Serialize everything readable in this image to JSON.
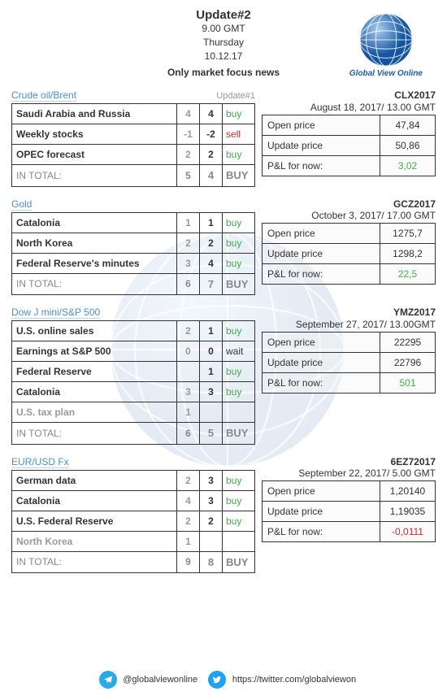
{
  "header": {
    "title": "Update#2",
    "time": "9.00 GMT",
    "day": "Thursday",
    "date": "10.12.17",
    "subtitle": "Only market focus news"
  },
  "logo_caption": "Global View Online",
  "colors": {
    "title_link": "#4a8fd4",
    "green": "#3cb043",
    "red": "#d8232a",
    "gray": "#999999"
  },
  "blocks": [
    {
      "title": "Crude oil/Brent",
      "sublabel": "Update#1",
      "rows": [
        {
          "name": "Saudi Arabia and Russia",
          "c1": "4",
          "c2": "4",
          "act": "buy",
          "act_color": "green"
        },
        {
          "name": "Weekly stocks",
          "c1": "-1",
          "c2": "-2",
          "act": "sell",
          "act_color": "red"
        },
        {
          "name": "OPEC forecast",
          "c1": "2",
          "c2": "2",
          "act": "buy",
          "act_color": "green"
        }
      ],
      "total": {
        "label": "IN TOTAL:",
        "c1": "5",
        "c2": "4",
        "act": "BUY",
        "act_color": "green"
      },
      "ticker": "CLX2017",
      "ticker_sub": "August 18, 2017/ 13.00 GMT",
      "info": [
        {
          "label": "Open price",
          "val": "47,84",
          "color": "black"
        },
        {
          "label": "Update price",
          "val": "50,86",
          "color": "black"
        },
        {
          "label": "P&L for now:",
          "val": "3,02",
          "color": "green"
        }
      ]
    },
    {
      "title": "Gold",
      "sublabel": "",
      "rows": [
        {
          "name": "Catalonia",
          "c1": "1",
          "c2": "1",
          "act": "buy",
          "act_color": "green"
        },
        {
          "name": "North Korea",
          "c1": "2",
          "c2": "2",
          "act": "buy",
          "act_color": "green"
        },
        {
          "name": "Federal Reserve's minutes",
          "c1": "3",
          "c2": "4",
          "act": "buy",
          "act_color": "green"
        }
      ],
      "total": {
        "label": "IN TOTAL:",
        "c1": "6",
        "c2": "7",
        "act": "BUY",
        "act_color": "green"
      },
      "ticker": "GCZ2017",
      "ticker_sub": "October 3, 2017/ 17.00 GMT",
      "info": [
        {
          "label": "Open price",
          "val": "1275,7",
          "color": "black"
        },
        {
          "label": "Update price",
          "val": "1298,2",
          "color": "black"
        },
        {
          "label": "P&L for now:",
          "val": "22,5",
          "color": "green"
        }
      ]
    },
    {
      "title": "Dow J mini/S&P 500",
      "sublabel": "",
      "rows": [
        {
          "name": "U.S. online sales",
          "c1": "2",
          "c2": "1",
          "act": "buy",
          "act_color": "green"
        },
        {
          "name": "Earnings at S&P 500",
          "c1": "0",
          "c2": "0",
          "act": "wait",
          "act_color": "black"
        },
        {
          "name": "Federal Reserve",
          "c1": "",
          "c2": "1",
          "act": "buy",
          "act_color": "green"
        },
        {
          "name": "Catalonia",
          "c1": "3",
          "c2": "3",
          "act": "buy",
          "act_color": "green"
        },
        {
          "name": "U.S. tax plan",
          "c1": "1",
          "c2": "",
          "act": "",
          "act_color": "black",
          "gray": true
        }
      ],
      "total": {
        "label": "IN TOTAL:",
        "c1": "6",
        "c2": "5",
        "act": "BUY",
        "act_color": "green"
      },
      "ticker": "YMZ2017",
      "ticker_sub": "September 27, 2017/ 13.00GMT",
      "info": [
        {
          "label": "Open price",
          "val": "22295",
          "color": "black"
        },
        {
          "label": "Update price",
          "val": "22796",
          "color": "black"
        },
        {
          "label": "P&L for now:",
          "val": "501",
          "color": "green"
        }
      ]
    },
    {
      "title": "EUR/USD Fx",
      "sublabel": "",
      "rows": [
        {
          "name": "German data",
          "c1": "2",
          "c2": "3",
          "act": "buy",
          "act_color": "green"
        },
        {
          "name": "Catalonia",
          "c1": "4",
          "c2": "3",
          "act": "buy",
          "act_color": "green"
        },
        {
          "name": "U.S. Federal Reserve",
          "c1": "2",
          "c2": "2",
          "act": "buy",
          "act_color": "green"
        },
        {
          "name": "North Korea",
          "c1": "1",
          "c2": "",
          "act": "",
          "act_color": "black",
          "gray": true
        }
      ],
      "total": {
        "label": "IN TOTAL:",
        "c1": "9",
        "c2": "8",
        "act": "BUY",
        "act_color": "green"
      },
      "ticker": "6EZ72017",
      "ticker_sub": "September 22, 2017/ 5.00 GMT",
      "info": [
        {
          "label": "Open price",
          "val": "1,20140",
          "color": "black"
        },
        {
          "label": "Update price",
          "val": "1,19035",
          "color": "black"
        },
        {
          "label": "P&L for now:",
          "val": "-0,0111",
          "color": "red"
        }
      ]
    }
  ],
  "footer": {
    "telegram": "@globalviewonline",
    "twitter": "https://twitter.com/globalviewon"
  }
}
